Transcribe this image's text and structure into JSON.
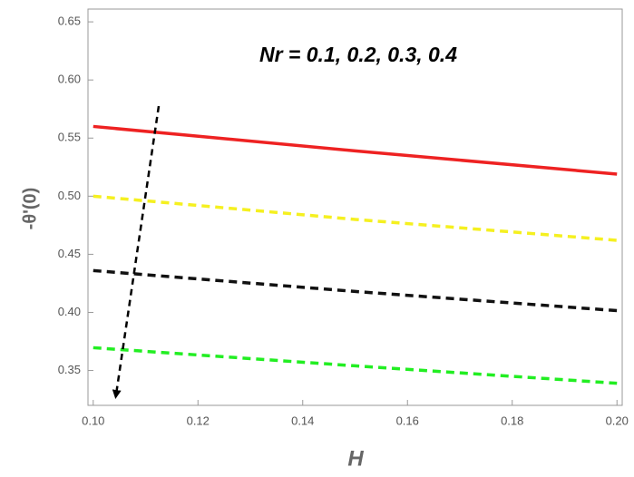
{
  "chart_data": {
    "type": "line",
    "annotation": "Nr  =  0.1,  0.2,  0.3,  0.4",
    "x_label": "H",
    "y_label": "-θ'(0)",
    "x": [
      0.1,
      0.15,
      0.2
    ],
    "series": [
      {
        "color": "#ee2222",
        "dash": "solid",
        "values": [
          0.56,
          0.539,
          0.519
        ]
      },
      {
        "color": "#f5f020",
        "dash": "dashed",
        "values": [
          0.5,
          0.48,
          0.462
        ]
      },
      {
        "color": "#111111",
        "dash": "dashed",
        "values": [
          0.436,
          0.418,
          0.4015
        ]
      },
      {
        "color": "#22ee22",
        "dash": "dashed",
        "values": [
          0.3696,
          0.354,
          0.339
        ]
      }
    ],
    "xlim": [
      0.099,
      0.201
    ],
    "ylim": [
      0.32,
      0.661
    ],
    "xticks": [
      {
        "value": 0.1,
        "label": "0.10"
      },
      {
        "value": 0.12,
        "label": "0.12"
      },
      {
        "value": 0.14,
        "label": "0.14"
      },
      {
        "value": 0.16,
        "label": "0.16"
      },
      {
        "value": 0.18,
        "label": "0.18"
      },
      {
        "value": 0.2,
        "label": "0.20"
      }
    ],
    "yticks": [
      0.35,
      {
        "value": 0.4,
        "label": "0.40"
      },
      0.45,
      {
        "value": 0.5,
        "label": "0.50"
      },
      0.55,
      {
        "value": 0.6,
        "label": "0.60"
      },
      0.65
    ]
  }
}
